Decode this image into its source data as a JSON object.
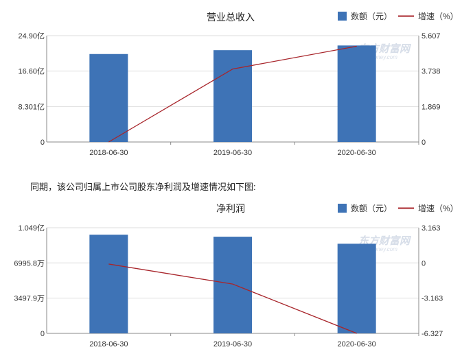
{
  "caption": "同期，该公司归属上市公司股东净利润及增速情况如下图:",
  "legend": {
    "bar_label": "数额（元）",
    "line_label": "增速（%）"
  },
  "colors": {
    "bar": "#3e73b6",
    "line": "#a8252b",
    "axis": "#888888",
    "grid": "#dddddd"
  },
  "watermark": {
    "cn": "东方财富网",
    "en": "eastmoney.com"
  },
  "chart_data": [
    {
      "type": "bar",
      "title": "营业总收入",
      "categories": [
        "2018-06-30",
        "2019-06-30",
        "2020-06-30"
      ],
      "series": [
        {
          "type": "bar",
          "values": [
            20.6,
            21.5,
            22.6
          ]
        },
        {
          "type": "line",
          "values": [
            0,
            3.85,
            5.05
          ]
        }
      ],
      "y_left": {
        "min": 0,
        "max": 24.9,
        "ticks": [
          0,
          8.301,
          16.6,
          24.9
        ],
        "tick_labels": [
          "0",
          "8.301亿",
          "16.60亿",
          "24.90亿"
        ]
      },
      "y_right": {
        "min": 0,
        "max": 5.607,
        "ticks": [
          0,
          1.869,
          3.738,
          5.607
        ],
        "tick_labels": [
          "0",
          "1.869",
          "3.738",
          "5.607"
        ]
      },
      "grid": true,
      "legend_position": "top-right"
    },
    {
      "type": "bar",
      "title": "净利润",
      "categories": [
        "2018-06-30",
        "2019-06-30",
        "2020-06-30"
      ],
      "series": [
        {
          "type": "bar",
          "values": [
            9800,
            9600,
            8900
          ]
        },
        {
          "type": "line",
          "values": [
            -0.1,
            -1.9,
            -6.327
          ]
        }
      ],
      "y_left": {
        "min": 0,
        "max": 10490,
        "ticks": [
          0,
          3497.9,
          6995.8,
          10490
        ],
        "tick_labels": [
          "0",
          "3497.9万",
          "6995.8万",
          "1.049亿"
        ]
      },
      "y_right": {
        "min": -6.327,
        "max": 3.163,
        "ticks": [
          -6.327,
          -3.163,
          0,
          3.163
        ],
        "tick_labels": [
          "-6.327",
          "-3.163",
          "0",
          "3.163"
        ]
      },
      "grid": true,
      "legend_position": "top-right"
    }
  ]
}
